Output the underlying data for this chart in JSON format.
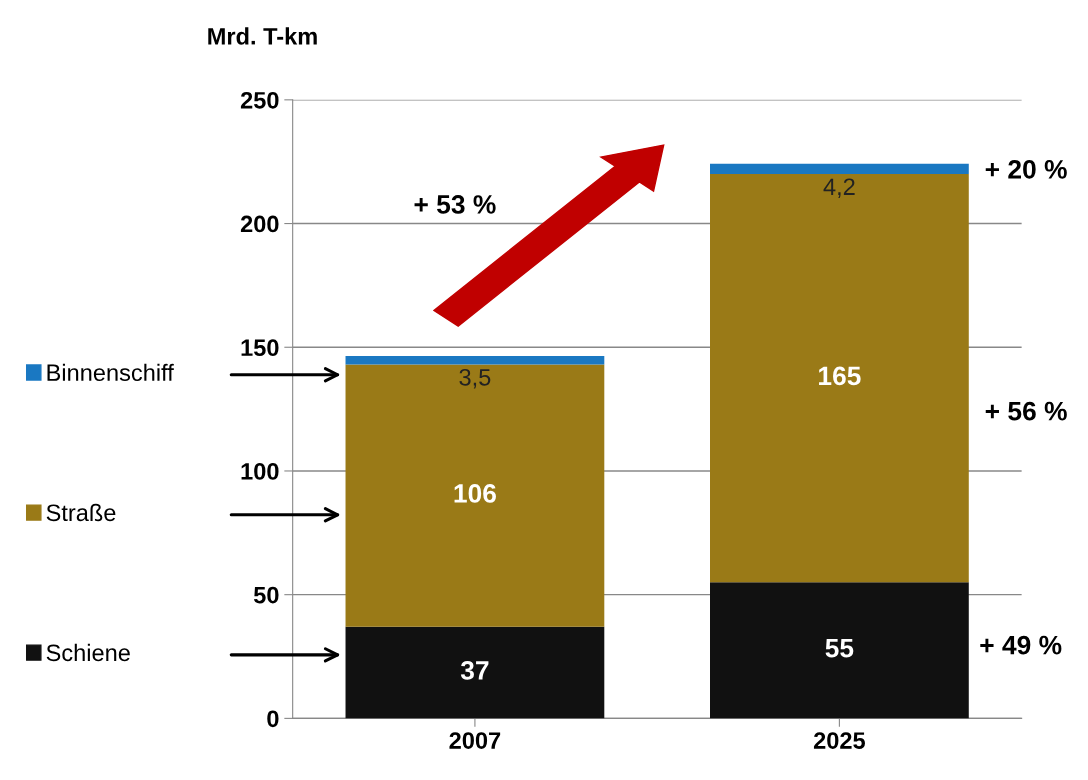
{
  "chart_data": {
    "type": "bar",
    "stacked": true,
    "ylabel": "Mrd. T-km",
    "categories": [
      "2007",
      "2025"
    ],
    "series": [
      {
        "name": "Schiene",
        "color": "#111111",
        "values": [
          37,
          55
        ],
        "value_labels": [
          "37",
          "55"
        ]
      },
      {
        "name": "Straße",
        "color": "#9a7a17",
        "values": [
          106,
          165
        ],
        "value_labels": [
          "106",
          "165"
        ]
      },
      {
        "name": "Binnenschiff",
        "color": "#1a78c2",
        "values": [
          3.5,
          4.2
        ],
        "value_labels": [
          "3,5",
          "4,2"
        ]
      }
    ],
    "ylim": [
      0,
      250
    ],
    "yticks": [
      0,
      50,
      100,
      150,
      200,
      250
    ],
    "grid": "y",
    "legend": "left",
    "annotations": [
      "+ 53 %",
      "+ 20 %",
      "+ 56 %",
      "+ 49 %"
    ]
  }
}
